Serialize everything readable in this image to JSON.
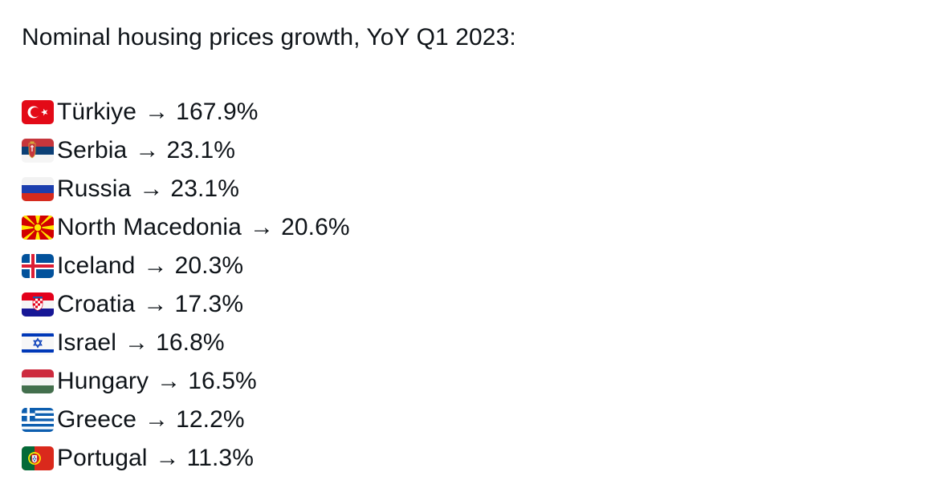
{
  "post": {
    "title": "Nominal housing prices growth, YoY Q1 2023:",
    "arrow": "→",
    "items": [
      {
        "flag_icon": "turkey-flag-icon",
        "country": "Türkiye",
        "value": "167.9%"
      },
      {
        "flag_icon": "serbia-flag-icon",
        "country": "Serbia",
        "value": "23.1%"
      },
      {
        "flag_icon": "russia-flag-icon",
        "country": "Russia",
        "value": "23.1%"
      },
      {
        "flag_icon": "north-macedonia-flag-icon",
        "country": "North Macedonia",
        "value": "20.6%"
      },
      {
        "flag_icon": "iceland-flag-icon",
        "country": "Iceland",
        "value": "20.3%"
      },
      {
        "flag_icon": "croatia-flag-icon",
        "country": "Croatia",
        "value": "17.3%"
      },
      {
        "flag_icon": "israel-flag-icon",
        "country": "Israel",
        "value": "16.8%"
      },
      {
        "flag_icon": "hungary-flag-icon",
        "country": "Hungary",
        "value": "16.5%"
      },
      {
        "flag_icon": "greece-flag-icon",
        "country": "Greece",
        "value": "12.2%"
      },
      {
        "flag_icon": "portugal-flag-icon",
        "country": "Portugal",
        "value": "11.3%"
      }
    ]
  },
  "colors": {
    "text": "#0f1419",
    "background": "#ffffff"
  }
}
